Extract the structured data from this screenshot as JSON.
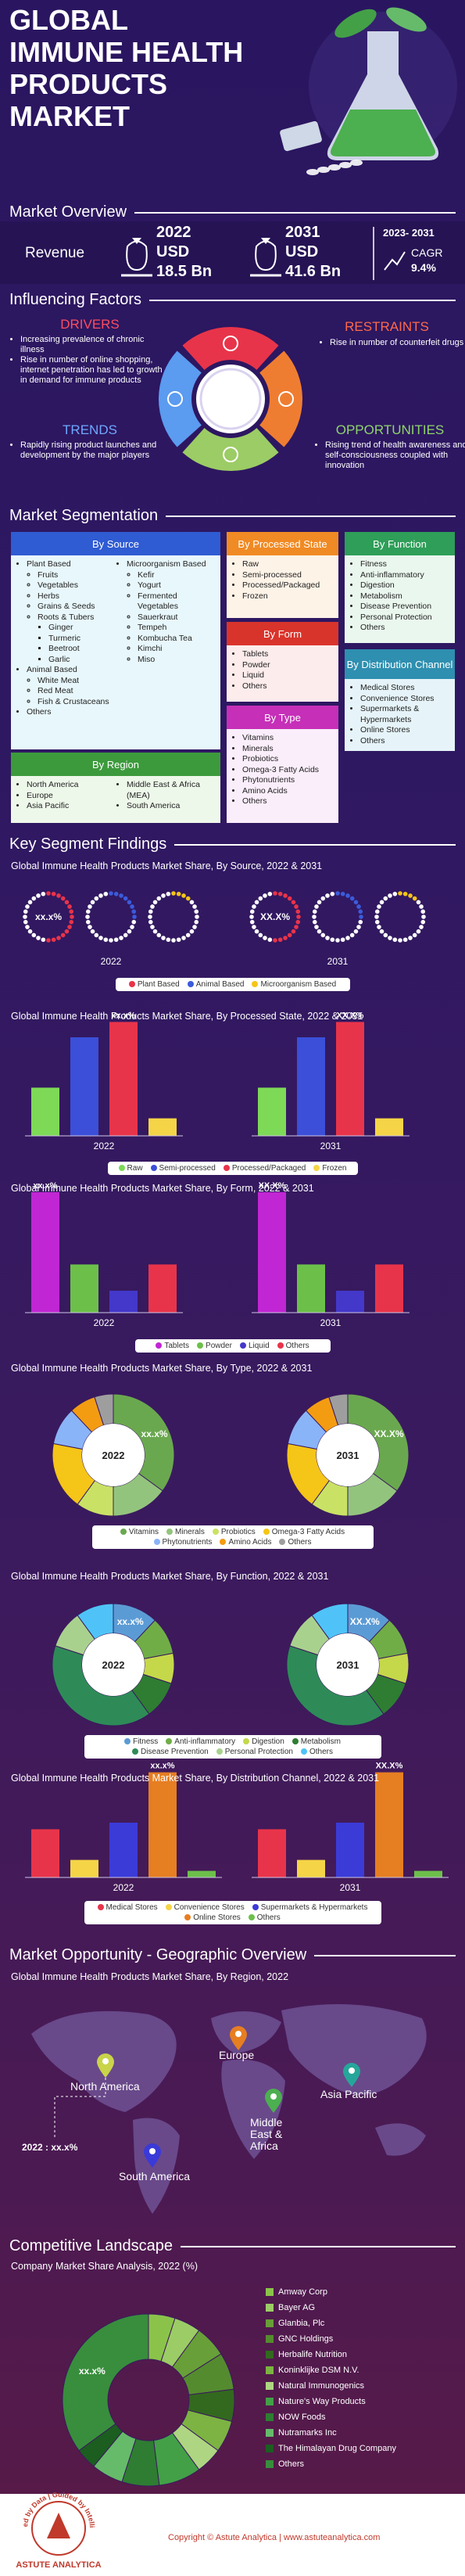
{
  "header": {
    "title_lines": [
      "GLOBAL",
      "IMMUNE HEALTH",
      "PRODUCTS",
      "MARKET"
    ]
  },
  "overview": {
    "heading": "Market Overview",
    "revenue_label": "Revenue",
    "years": [
      {
        "year": "2022",
        "currency": "USD",
        "value": "18.5 Bn"
      },
      {
        "year": "2031",
        "currency": "USD",
        "value": "41.6 Bn"
      }
    ],
    "cagr_period": "2023- 2031",
    "cagr_label": "CAGR",
    "cagr_value": "9.4%"
  },
  "factors": {
    "heading": "Influencing Factors",
    "drivers": {
      "title": "DRIVERS",
      "items": [
        "Increasing prevalence of chronic illness",
        "Rise in number of online shopping, internet penetration has led to growth in demand for immune products"
      ]
    },
    "restraints": {
      "title": "RESTRAINTS",
      "items": [
        "Rise in number of counterfeit drugs"
      ]
    },
    "trends": {
      "title": "TRENDS",
      "items": [
        "Rapidly rising product launches and development by the major players"
      ]
    },
    "opportunities": {
      "title": "OPPORTUNITIES",
      "items": [
        "Rising trend of health awareness and self-consciousness coupled with innovation"
      ]
    }
  },
  "segmentation": {
    "heading": "Market Segmentation",
    "source": {
      "title": "By Source",
      "columns": [
        [
          {
            "label": "Plant Based",
            "items": [
              "Fruits",
              "Vegetables",
              "Herbs",
              "Grains & Seeds",
              {
                "label": "Roots & Tubers",
                "items": [
                  "Ginger",
                  "Turmeric",
                  "Beetroot",
                  "Garlic"
                ]
              }
            ]
          },
          {
            "label": "Animal Based",
            "items": [
              "White Meat",
              "Red Meat",
              "Fish & Crustaceans"
            ]
          },
          "Others"
        ],
        [
          {
            "label": "Microorganism Based",
            "items": [
              "Kefir",
              "Yogurt",
              "Fermented Vegetables",
              "Sauerkraut",
              "Tempeh",
              "Kombucha Tea",
              "Kimchi",
              "Miso"
            ]
          }
        ]
      ]
    },
    "processed_state": {
      "title": "By Processed State",
      "items": [
        "Raw",
        "Semi-processed",
        "Processed/Packaged",
        "Frozen"
      ]
    },
    "form": {
      "title": "By Form",
      "items": [
        "Tablets",
        "Powder",
        "Liquid",
        "Others"
      ]
    },
    "type": {
      "title": "By Type",
      "items": [
        "Vitamins",
        "Minerals",
        "Probiotics",
        "Omega-3 Fatty Acids",
        "Phytonutrients",
        "Amino Acids",
        "Others"
      ]
    },
    "function": {
      "title": "By Function",
      "items": [
        "Fitness",
        "Anti-inflammatory",
        "Digestion",
        "Metabolism",
        "Disease Prevention",
        "Personal Protection",
        "Others"
      ]
    },
    "distribution": {
      "title": "By Distribution Channel",
      "items": [
        "Medical Stores",
        "Convenience Stores",
        "Supermarkets & Hypermarkets",
        "Online Stores",
        "Others"
      ]
    },
    "region": {
      "title": "By Region",
      "columns": [
        [
          "North America",
          "Europe",
          "Asia Pacific"
        ],
        [
          "Middle East & Africa (MEA)",
          "South America"
        ]
      ]
    }
  },
  "findings_heading": "Key Segment Findings",
  "chart_data": [
    {
      "type": "dot_rings",
      "title": "Global Immune Health Products Market Share, By Source, 2022 & 2031",
      "categories": [
        "2022",
        "2031"
      ],
      "center_labels": [
        "xx.x%",
        "XX.X%"
      ],
      "series": [
        {
          "name": "Plant Based",
          "color": "#e8344a",
          "values": [
            55,
            55
          ]
        },
        {
          "name": "Animal Based",
          "color": "#3b5bdb",
          "values": [
            30,
            30
          ]
        },
        {
          "name": "Microorganism Based",
          "color": "#f5c518",
          "values": [
            15,
            15
          ]
        }
      ]
    },
    {
      "type": "bar",
      "title": "Global Immune Health Products Market Share, By Processed State, 2022 & 2031",
      "categories": [
        "2022",
        "2031"
      ],
      "bar_labels": [
        "xx.x%",
        "XX.X%"
      ],
      "series": [
        {
          "name": "Raw",
          "color": "#7ed957",
          "values": [
            22,
            22
          ]
        },
        {
          "name": "Semi-processed",
          "color": "#3b4fd8",
          "values": [
            45,
            45
          ]
        },
        {
          "name": "Processed/Packaged",
          "color": "#e8344a",
          "values": [
            52,
            52
          ]
        },
        {
          "name": "Frozen",
          "color": "#f5d547",
          "values": [
            8,
            8
          ]
        }
      ]
    },
    {
      "type": "bar",
      "title": "Global Immune Health Products Market Share, By Form, 2022 & 2031",
      "categories": [
        "2022",
        "2031"
      ],
      "bar_labels": [
        "xx.x%",
        "XX.X%"
      ],
      "series": [
        {
          "name": "Tablets",
          "color": "#c026d3",
          "values": [
            55,
            55
          ]
        },
        {
          "name": "Powder",
          "color": "#6cc04a",
          "values": [
            22,
            22
          ]
        },
        {
          "name": "Liquid",
          "color": "#4338ca",
          "values": [
            10,
            10
          ]
        },
        {
          "name": "Others",
          "color": "#e8344a",
          "values": [
            22,
            22
          ]
        }
      ]
    },
    {
      "type": "donut",
      "title": "Global Immune Health Products Market Share, By Type, 2022 & 2031",
      "categories": [
        "2022",
        "2031"
      ],
      "center_labels": [
        "xx.x%",
        "XX.X%"
      ],
      "series": [
        {
          "name": "Vitamins",
          "color": "#6aa84f",
          "values": [
            35,
            35
          ]
        },
        {
          "name": "Minerals",
          "color": "#93c47d",
          "values": [
            15,
            15
          ]
        },
        {
          "name": "Probiotics",
          "color": "#c9e265",
          "values": [
            10,
            10
          ]
        },
        {
          "name": "Omega-3 Fatty Acids",
          "color": "#f5c518",
          "values": [
            18,
            18
          ]
        },
        {
          "name": "Phytonutrients",
          "color": "#8ab4f8",
          "values": [
            10,
            10
          ]
        },
        {
          "name": "Amino Acids",
          "color": "#f39c12",
          "values": [
            7,
            7
          ]
        },
        {
          "name": "Others",
          "color": "#9e9e9e",
          "values": [
            5,
            5
          ]
        }
      ]
    },
    {
      "type": "donut",
      "title": "Global Immune Health Products Market Share, By Function, 2022 & 2031",
      "categories": [
        "2022",
        "2031"
      ],
      "center_labels": [
        "xx.x%",
        "XX.X%"
      ],
      "series": [
        {
          "name": "Fitness",
          "color": "#5b9bd5",
          "values": [
            12,
            12
          ]
        },
        {
          "name": "Anti-inflammatory",
          "color": "#70ad47",
          "values": [
            10,
            10
          ]
        },
        {
          "name": "Digestion",
          "color": "#c5d84a",
          "values": [
            8,
            8
          ]
        },
        {
          "name": "Metabolism",
          "color": "#2e7d32",
          "values": [
            10,
            10
          ]
        },
        {
          "name": "Disease Prevention",
          "color": "#2e8b57",
          "values": [
            40,
            40
          ]
        },
        {
          "name": "Personal Protection",
          "color": "#a9d18e",
          "values": [
            10,
            10
          ]
        },
        {
          "name": "Others",
          "color": "#4fc3f7",
          "values": [
            10,
            10
          ]
        }
      ]
    },
    {
      "type": "bar",
      "title": "Global Immune Health Products Market Share, By Distribution Channel, 2022 & 2031",
      "categories": [
        "2022",
        "2031"
      ],
      "bar_labels": [
        "xx.x%",
        "XX.X%"
      ],
      "series": [
        {
          "name": "Medical Stores",
          "color": "#e8344a",
          "values": [
            22,
            22
          ]
        },
        {
          "name": "Convenience Stores",
          "color": "#f5d547",
          "values": [
            8,
            8
          ]
        },
        {
          "name": "Supermarkets & Hypermarkets",
          "color": "#3b3bd8",
          "values": [
            25,
            25
          ]
        },
        {
          "name": "Online Stores",
          "color": "#e67e22",
          "values": [
            48,
            48
          ]
        },
        {
          "name": "Others",
          "color": "#6cc04a",
          "values": [
            3,
            3
          ]
        }
      ]
    },
    {
      "type": "pie_list",
      "title": "Company Market Share Analysis, 2022 (%)",
      "annotation": "xx.x%",
      "labels": [
        "Amway Corp",
        "Bayer AG",
        "Glanbia, Plc",
        "GNC Holdings",
        "Herbalife Nutrition",
        "Koninklijke DSM N.V.",
        "Natural Immunogenics",
        "Nature's Way Products",
        "NOW Foods",
        "Nutramarks Inc",
        "The Himalayan Drug Company",
        "Others"
      ],
      "colors": [
        "#8bc34a",
        "#9ccc65",
        "#689f38",
        "#558b2f",
        "#33691e",
        "#7cb342",
        "#aed581",
        "#43a047",
        "#2e7d32",
        "#66bb6a",
        "#1b5e20",
        "#388e3c"
      ],
      "values": [
        5,
        5,
        6,
        7,
        6,
        6,
        5,
        8,
        7,
        6,
        4,
        35
      ]
    }
  ],
  "geo": {
    "heading": "Market Opportunity - Geographic Overview",
    "subtitle": "Global Immune Health Products Market Share, By Region, 2022",
    "regions": [
      "North America",
      "Europe",
      "Asia Pacific",
      "Middle East & Africa",
      "South America"
    ],
    "callout": "2022 : xx.x%"
  },
  "competitive_heading": "Competitive Landscape",
  "footer": {
    "tagline": "Powered by Data | Guided by Intelligence",
    "logo": "ASTUTE ANALYTICA",
    "copyright": "Copyright © Astute Analytica | www.astuteanalytica.com"
  }
}
